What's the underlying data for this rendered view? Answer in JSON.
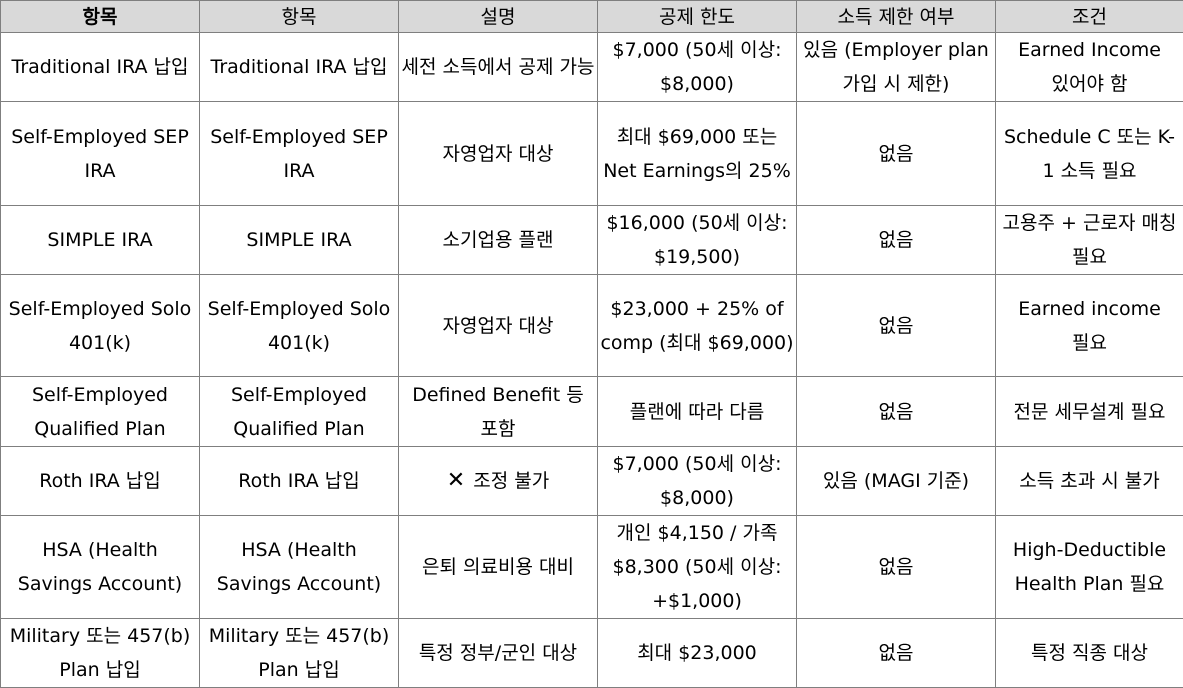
{
  "table": {
    "headers": [
      "항목",
      "항목",
      "설명",
      "공제 한도",
      "소득 제한 여부",
      "조건"
    ],
    "rows": [
      [
        "Traditional IRA 납입",
        "Traditional IRA 납입",
        "세전 소득에서 공제 가능",
        "$7,000 (50세 이상: $8,000)",
        "있음 (Employer plan 가입 시 제한)",
        "Earned Income 있어야 함"
      ],
      [
        "Self-Employed SEP IRA",
        "Self-Employed SEP IRA",
        "자영업자 대상",
        "최대 $69,000 또는 Net Earnings의 25%",
        "없음",
        "Schedule C 또는 K-1 소득 필요"
      ],
      [
        "SIMPLE IRA",
        "SIMPLE IRA",
        "소기업용 플랜",
        "$16,000 (50세 이상: $19,500)",
        "없음",
        "고용주 + 근로자 매칭 필요"
      ],
      [
        "Self-Employed Solo 401(k)",
        "Self-Employed Solo 401(k)",
        "자영업자 대상",
        "$23,000 + 25% of comp (최대 $69,000)",
        "없음",
        "Earned income 필요"
      ],
      [
        "Self-Employed Qualified Plan",
        "Self-Employed Qualified Plan",
        "Defined Benefit 등 포함",
        "플랜에 따라 다름",
        "없음",
        "전문 세무설계 필요"
      ],
      [
        "Roth IRA 납입",
        "Roth IRA 납입",
        "조정 불가",
        "$7,000 (50세 이상: $8,000)",
        "있음 (MAGI 기준)",
        "소득 초과 시 불가"
      ],
      [
        "HSA (Health Savings Account)",
        "HSA (Health Savings Account)",
        "은퇴 의료비용 대비",
        "개인 $4,150 / 가족 $8,300 (50세 이상: +$1,000)",
        "없음",
        "High-Deductible Health Plan 필요"
      ],
      [
        "Military 또는 457(b) Plan 납입",
        "Military 또는 457(b) Plan 납입",
        "특정 정부/군인 대상",
        "최대 $23,000",
        "없음",
        "특정 직종 대상"
      ]
    ],
    "cross_glyph": "✕"
  }
}
